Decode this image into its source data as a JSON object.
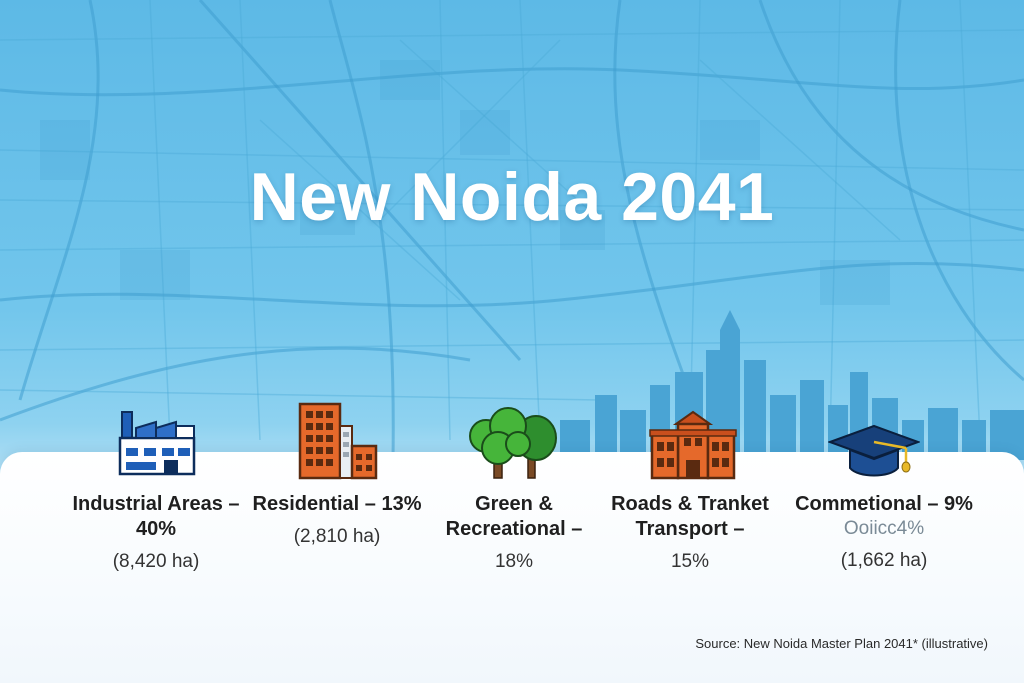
{
  "title": "New Noida 2041",
  "categories": [
    {
      "icon": "factory-icon",
      "label": "Industrial Areas – 40%",
      "detail": "(8,420 ha)"
    },
    {
      "icon": "residential-building-icon",
      "label": "Residential – 13%",
      "detail": "(2,810 ha)"
    },
    {
      "icon": "trees-icon",
      "label": "Green & Recreational –",
      "detail": "18%"
    },
    {
      "icon": "station-building-icon",
      "label": "Roads & Tranket Transport –",
      "detail": "15%"
    },
    {
      "icon": "graduation-cap-icon",
      "label": "Commetional – 9%",
      "sub": "Ooiicc4%",
      "detail": "(1,662 ha)"
    }
  ],
  "source": "Source: New Noida Master Plan 2041* (illustrative)",
  "colors": {
    "sky": "#6cc3ea",
    "map_lines": "#3f9fd0",
    "skyline": "#4aa4d4",
    "panel": "#ffffff",
    "factory_blue": "#1f5fb8",
    "building_orange": "#e5692b",
    "tree_green": "#46b53a",
    "cap_navy": "#17407a"
  }
}
